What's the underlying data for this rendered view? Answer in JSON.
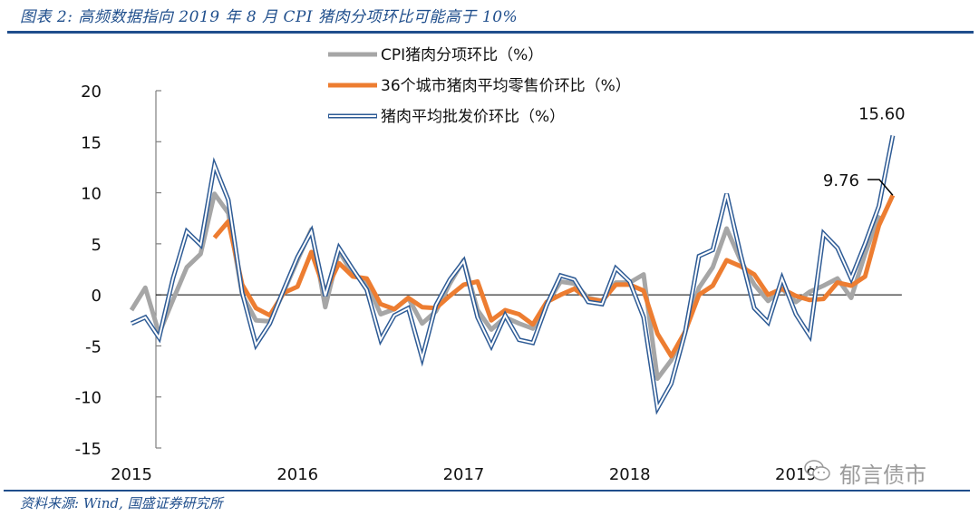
{
  "header": {
    "title": "图表 2:  高频数据指向 2019 年 8 月 CPI 猪肉分项环比可能高于 10%"
  },
  "footer": {
    "source": "资料来源:  Wind,  国盛证券研究所",
    "watermark": "郁言债市",
    "watermark_icon": "wechat-icon"
  },
  "chart_data": {
    "type": "line",
    "title": "高频数据指向 2019 年 8 月 CPI 猪肉分项环比可能高于 10%",
    "xlabel": "",
    "ylabel": "",
    "ylim": [
      -15,
      20
    ],
    "yticks": [
      -15,
      -10,
      -5,
      0,
      5,
      10,
      15,
      20
    ],
    "xtick_labels": [
      "2015",
      "2016",
      "2017",
      "2018",
      "2019"
    ],
    "x_start": "2015-01",
    "x_frequency": "monthly",
    "grid": false,
    "zero_line": true,
    "legend_position": "top-center",
    "series": [
      {
        "name": "CPI猪肉分项环比（%）",
        "color": "#a6a6a6",
        "style": "solid-thick",
        "start_index": 0,
        "values": [
          -1.5,
          0.7,
          -3.8,
          -0.5,
          2.7,
          4.0,
          9.9,
          8.0,
          0.0,
          -2.5,
          -2.6,
          0.3,
          3.4,
          6.4,
          -1.2,
          4.3,
          2.0,
          1.2,
          -1.9,
          -1.4,
          -0.3,
          -2.8,
          -1.6,
          1.1,
          3.4,
          -1.5,
          -3.4,
          -2.2,
          -2.8,
          -3.3,
          -0.9,
          1.3,
          1.1,
          -0.3,
          -0.6,
          1.2,
          1.2,
          2.0,
          -8.2,
          -6.4,
          -3.7,
          0.7,
          2.7,
          6.5,
          3.4,
          1.0,
          -0.6,
          0.6,
          -0.7,
          0.3,
          0.9,
          1.6,
          -0.3,
          4.0,
          7.8
        ]
      },
      {
        "name": "36个城市猪肉平均零售价环比（%）",
        "color": "#ed7d31",
        "style": "solid-thick",
        "start_index": 6,
        "values": [
          5.6,
          7.2,
          1.0,
          -1.3,
          -2.0,
          0.2,
          0.8,
          4.2,
          0.3,
          3.1,
          1.8,
          1.6,
          -0.9,
          -1.4,
          -0.3,
          -1.2,
          -1.3,
          -0.1,
          1.0,
          1.3,
          -2.5,
          -1.5,
          -1.9,
          -2.9,
          -0.7,
          0.0,
          0.6,
          -0.4,
          -0.6,
          1.0,
          1.0,
          0.4,
          -3.8,
          -6.0,
          -3.6,
          0.0,
          0.9,
          3.4,
          2.8,
          2.0,
          0.0,
          0.6,
          -0.1,
          -0.5,
          -0.4,
          1.2,
          0.9,
          1.8,
          6.8,
          9.76
        ]
      },
      {
        "name": "猪肉平均批发价环比（%）",
        "color": "#2e5b95",
        "style": "double-outline",
        "start_index": 0,
        "values": [
          -2.8,
          -2.2,
          -4.2,
          1.6,
          6.2,
          4.9,
          12.7,
          9.3,
          0.2,
          -4.9,
          -2.8,
          0.5,
          3.7,
          6.2,
          -0.1,
          4.6,
          2.5,
          0.5,
          -4.4,
          -2.0,
          -1.3,
          -6.2,
          -1.0,
          1.5,
          3.3,
          -2.2,
          -5.0,
          -2.0,
          -4.4,
          -4.7,
          -1.0,
          1.9,
          1.5,
          -0.7,
          -0.9,
          2.6,
          1.3,
          -2.2,
          -11.1,
          -8.7,
          -3.7,
          3.8,
          4.4,
          9.9,
          4.0,
          -1.3,
          -2.7,
          1.6,
          -1.9,
          -4.0,
          6.0,
          4.6,
          1.6,
          5.0,
          8.7,
          15.6
        ]
      }
    ],
    "annotations": [
      {
        "text": "15.60",
        "series": "猪肉平均批发价环比（%）",
        "point": "2019-08",
        "value": 15.6
      },
      {
        "text": "9.76",
        "series": "36个城市猪肉平均零售价环比（%）",
        "point": "2019-08",
        "value": 9.76
      }
    ]
  }
}
